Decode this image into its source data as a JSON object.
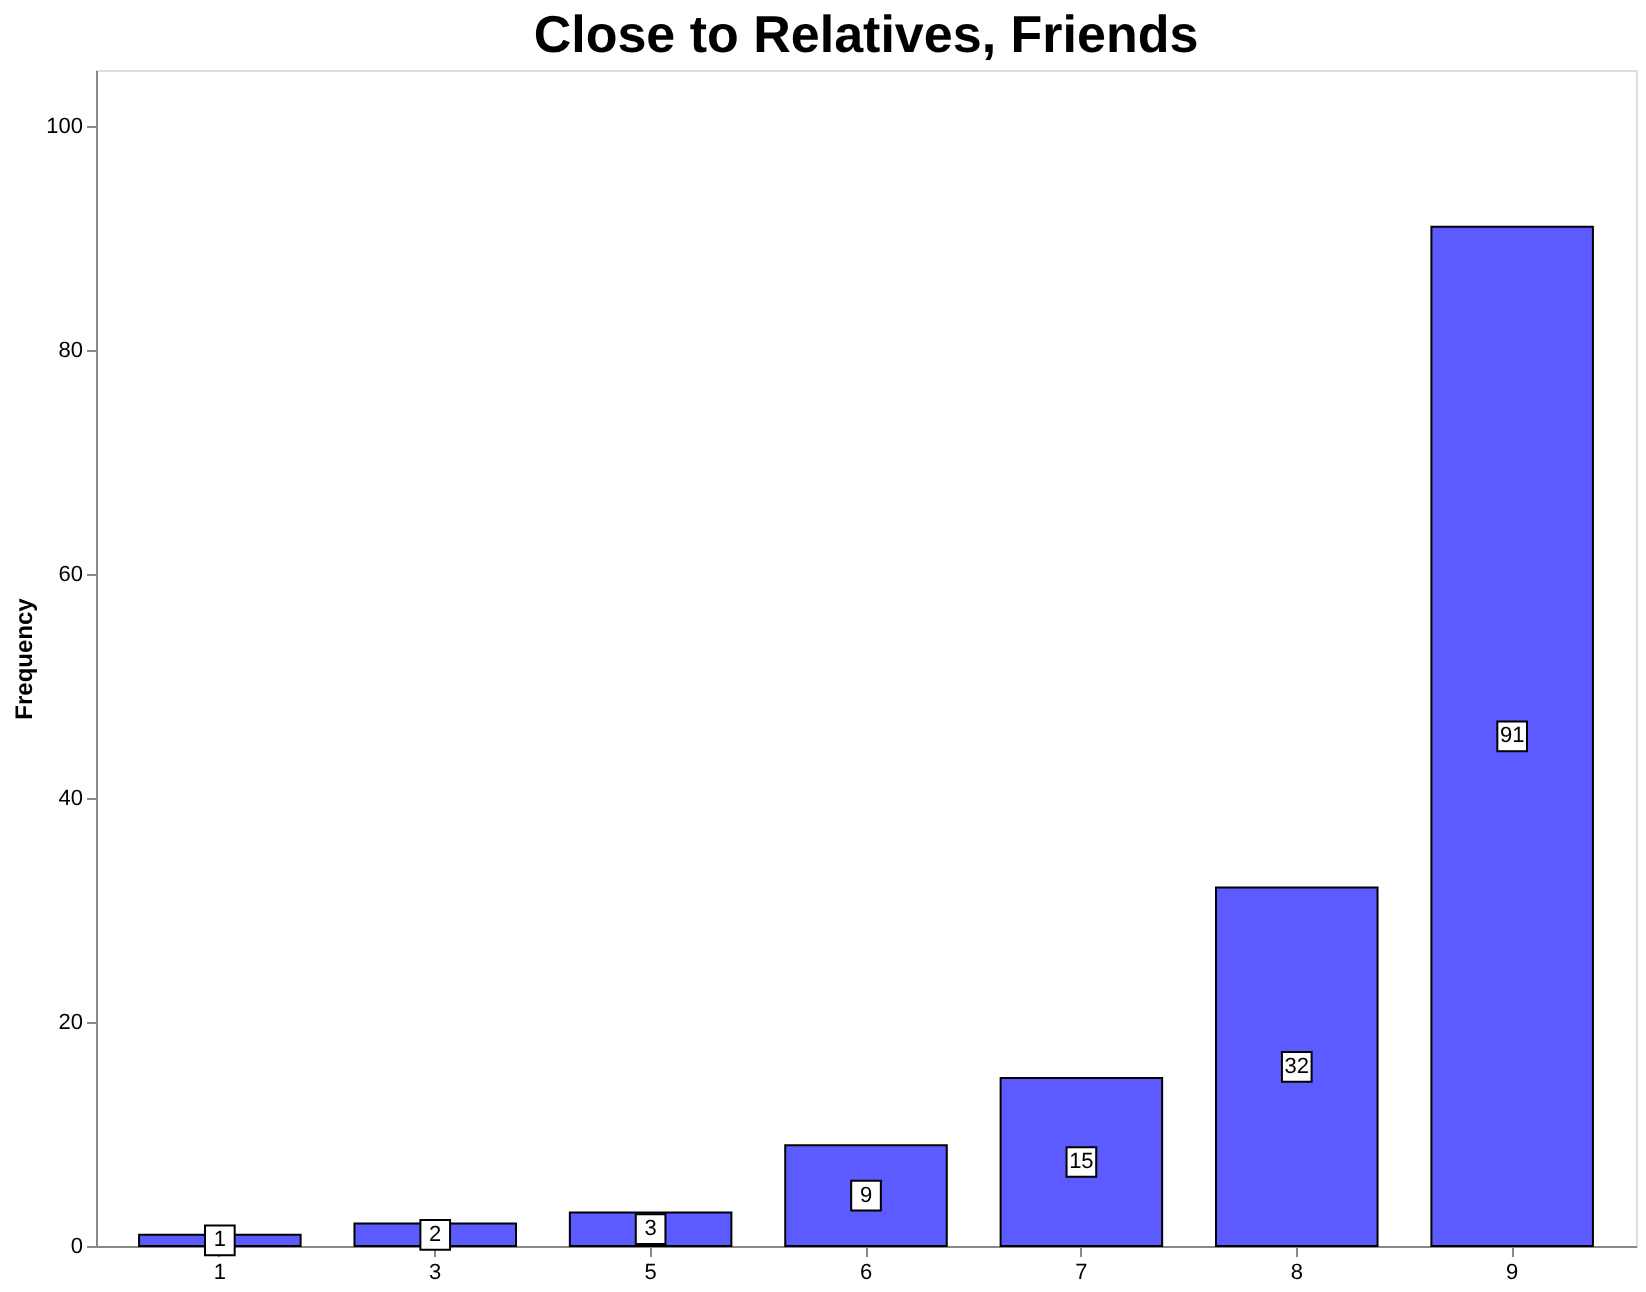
{
  "chart_data": {
    "type": "bar",
    "title": "Close to Relatives, Friends",
    "ylabel": "Frequency",
    "categories": [
      "1",
      "3",
      "5",
      "6",
      "7",
      "8",
      "9"
    ],
    "values": [
      1,
      2,
      3,
      9,
      15,
      32,
      91
    ],
    "color": "#5b5bff",
    "ylim": [
      0,
      105
    ],
    "yticks": [
      0,
      20,
      40,
      60,
      80,
      100
    ],
    "grid": false,
    "data_labels": true
  }
}
